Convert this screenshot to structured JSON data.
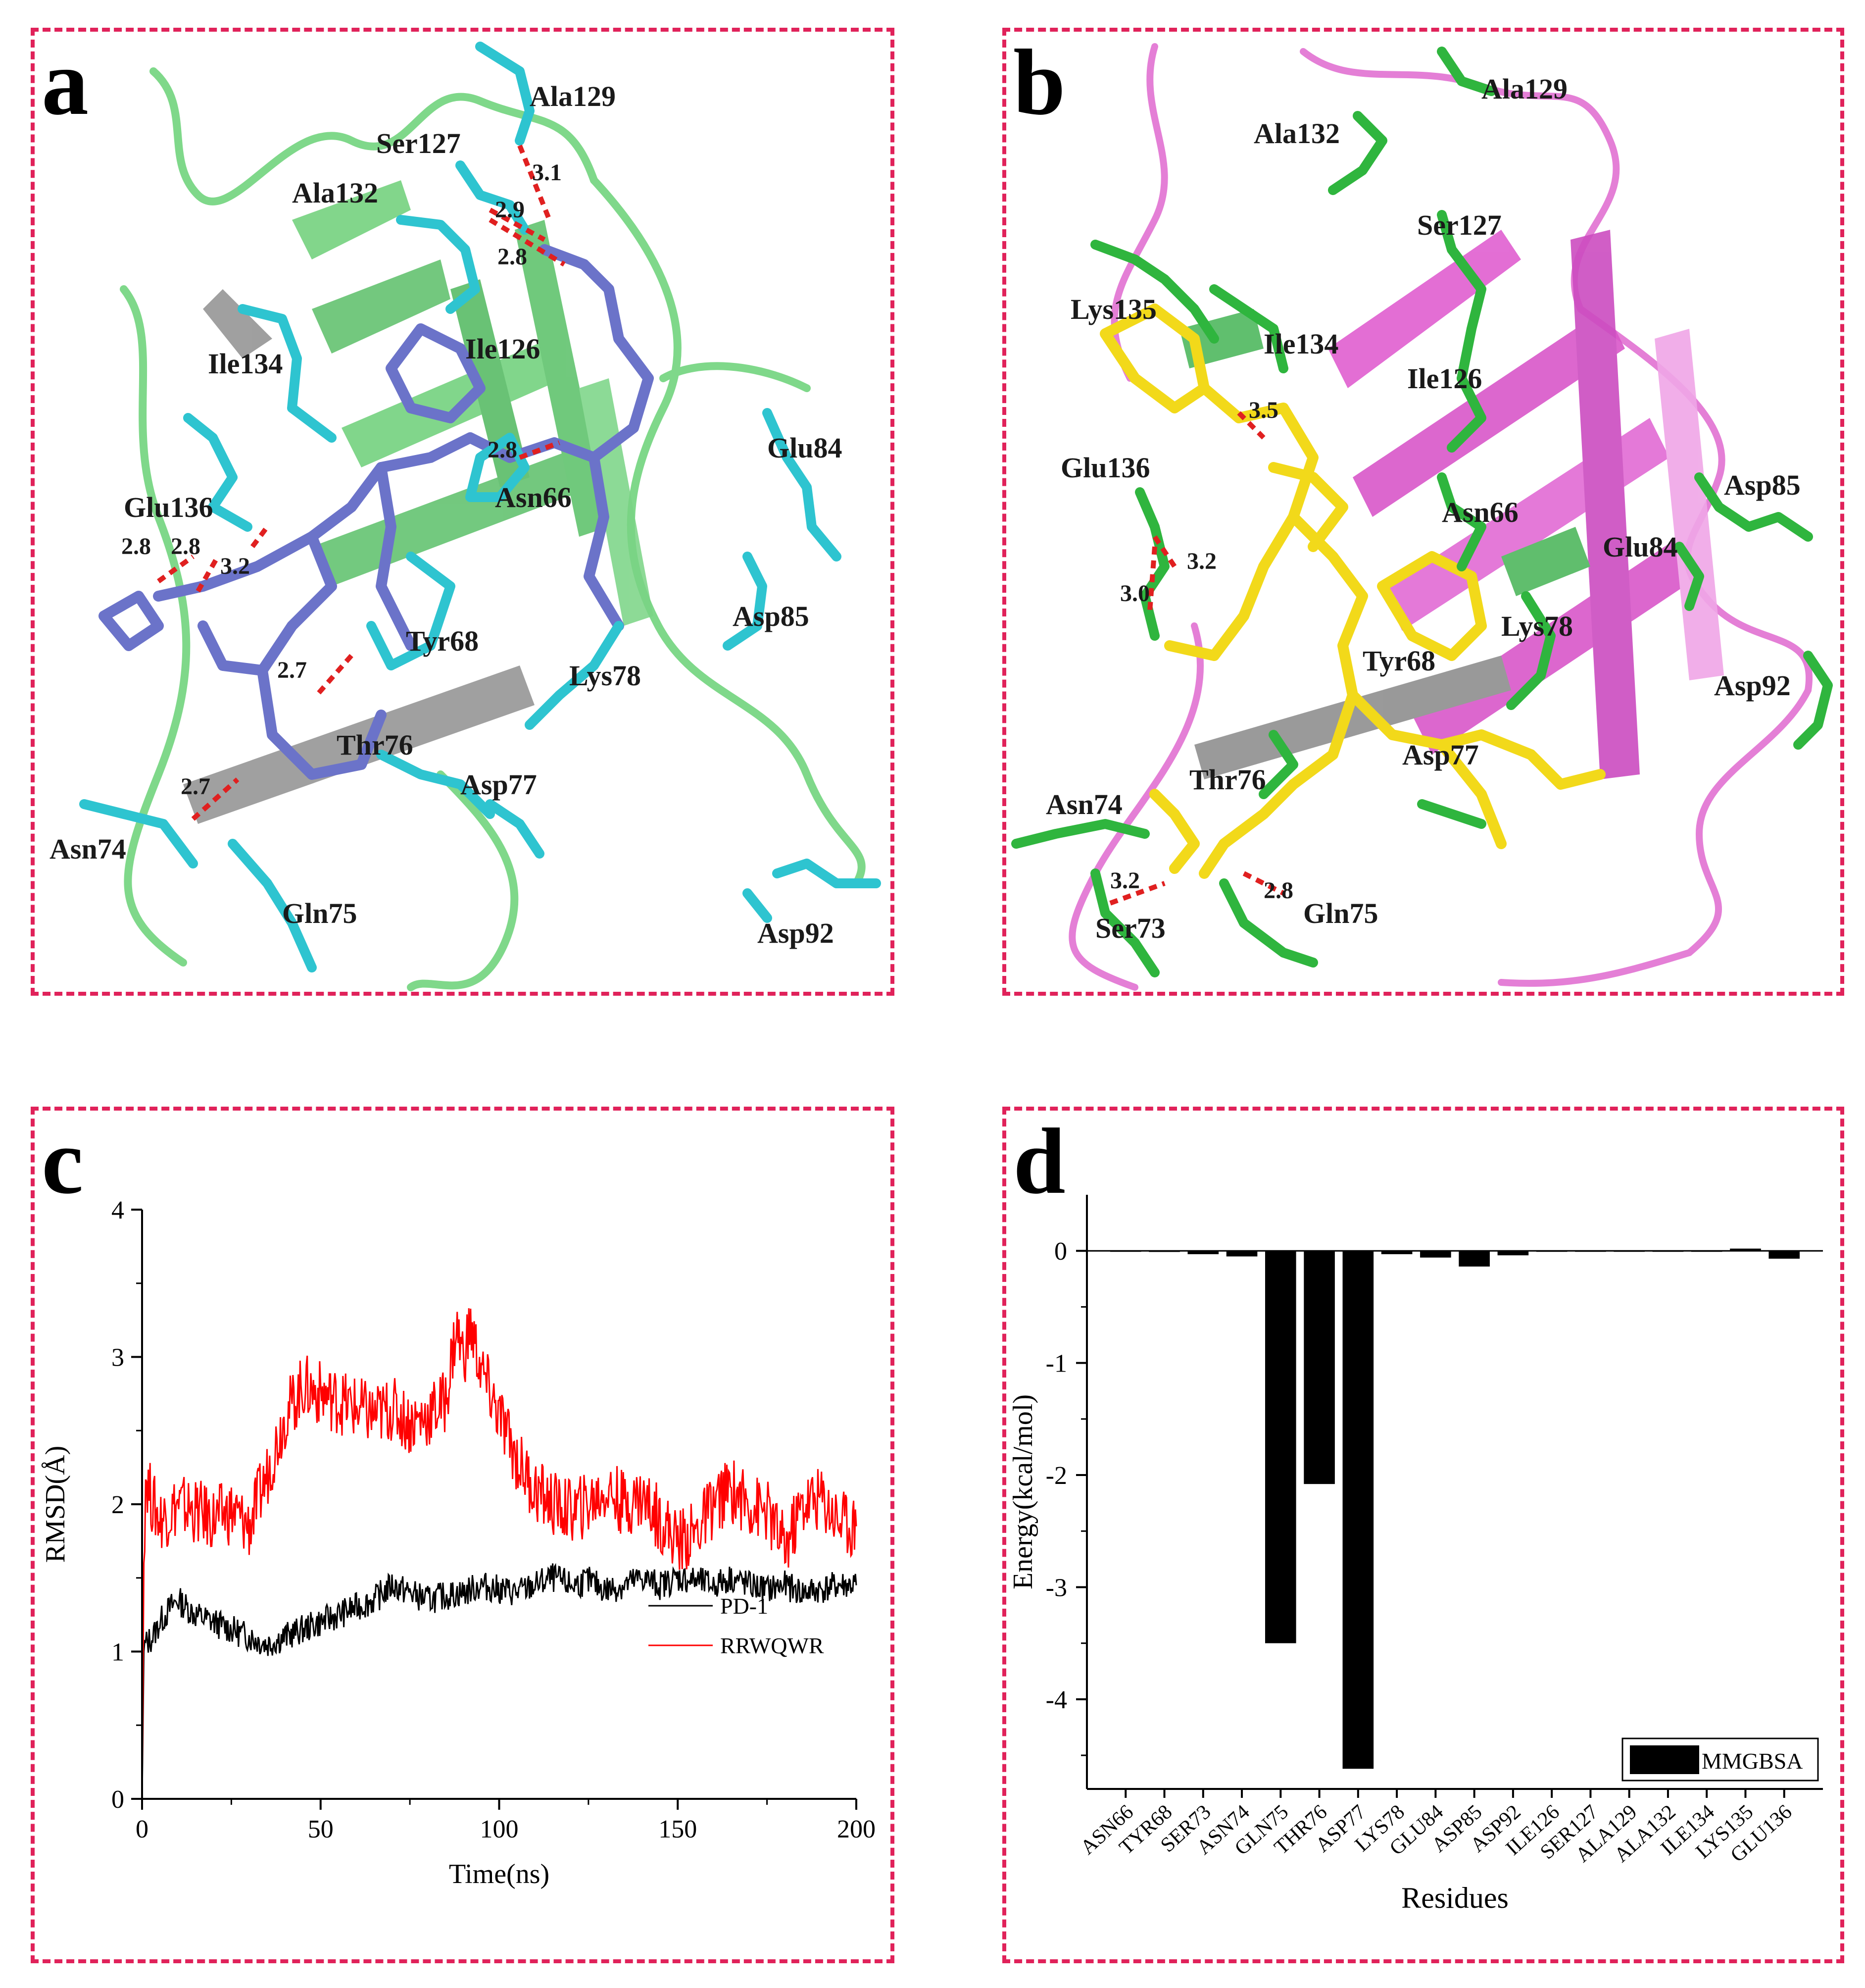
{
  "panels": {
    "a": {
      "letter": "a",
      "residues": [
        "Ala129",
        "Ser127",
        "Ala132",
        "Ile134",
        "Ile126",
        "Glu84",
        "Glu136",
        "Asn66",
        "Tyr68",
        "Lys78",
        "Asp85",
        "Thr76",
        "Asp77",
        "Asn74",
        "Gln75",
        "Asp92"
      ],
      "distances": [
        "3.1",
        "2.9",
        "2.8",
        "2.8",
        "2.8",
        "2.8",
        "3.2",
        "2.7",
        "2.7"
      ]
    },
    "b": {
      "letter": "b",
      "residues": [
        "Ala129",
        "Ala132",
        "Ser127",
        "Lys135",
        "Ile134",
        "Ile126",
        "Glu136",
        "Asn66",
        "Asp85",
        "Glu84",
        "Lys78",
        "Tyr68",
        "Asp92",
        "Thr76",
        "Asp77",
        "Asn74",
        "Gln75",
        "Ser73"
      ],
      "distances": [
        "3.5",
        "3.2",
        "3.0",
        "3.2",
        "2.8"
      ]
    },
    "c": {
      "letter": "c"
    },
    "d": {
      "letter": "d"
    }
  },
  "chart_data": [
    {
      "type": "line",
      "panel": "c",
      "xlabel": "Time(ns)",
      "ylabel": "RMSD(Å)",
      "xlim": [
        0,
        200
      ],
      "ylim": [
        0,
        4
      ],
      "xticks": [
        0,
        50,
        100,
        150,
        200
      ],
      "yticks": [
        0,
        1,
        2,
        3,
        4
      ],
      "legend_position": "bottom-right",
      "series": [
        {
          "name": "PD-1",
          "color": "#000000",
          "x": [
            0,
            0.5,
            1,
            3,
            5,
            8,
            10,
            15,
            20,
            25,
            30,
            35,
            40,
            45,
            50,
            55,
            60,
            65,
            70,
            75,
            80,
            85,
            90,
            95,
            100,
            105,
            110,
            115,
            120,
            125,
            130,
            135,
            140,
            145,
            150,
            155,
            160,
            165,
            170,
            175,
            180,
            185,
            190,
            195,
            200
          ],
          "y": [
            0,
            1.0,
            1.05,
            1.1,
            1.2,
            1.3,
            1.35,
            1.25,
            1.2,
            1.15,
            1.1,
            1.05,
            1.1,
            1.15,
            1.2,
            1.25,
            1.3,
            1.35,
            1.45,
            1.4,
            1.35,
            1.38,
            1.4,
            1.45,
            1.42,
            1.4,
            1.45,
            1.5,
            1.45,
            1.48,
            1.42,
            1.45,
            1.5,
            1.45,
            1.5,
            1.48,
            1.45,
            1.5,
            1.45,
            1.42,
            1.45,
            1.4,
            1.42,
            1.45,
            1.45
          ]
        },
        {
          "name": "RRWQWR",
          "color": "#ff0000",
          "x": [
            0,
            0.5,
            1,
            3,
            5,
            8,
            10,
            15,
            20,
            25,
            30,
            35,
            40,
            45,
            50,
            55,
            60,
            65,
            70,
            75,
            80,
            85,
            88,
            90,
            92,
            95,
            100,
            105,
            110,
            115,
            120,
            125,
            130,
            135,
            140,
            145,
            150,
            155,
            160,
            165,
            170,
            175,
            180,
            185,
            190,
            195,
            200
          ],
          "y": [
            0,
            1.6,
            2.2,
            2.0,
            1.9,
            1.95,
            2.0,
            1.95,
            1.9,
            1.95,
            1.85,
            2.2,
            2.6,
            2.8,
            2.75,
            2.7,
            2.65,
            2.6,
            2.65,
            2.55,
            2.6,
            2.7,
            3.2,
            3.0,
            3.2,
            2.9,
            2.6,
            2.3,
            2.1,
            2.0,
            1.95,
            2.0,
            2.1,
            2.0,
            2.05,
            1.9,
            1.75,
            1.8,
            2.0,
            2.1,
            2.0,
            1.95,
            1.7,
            2.0,
            2.05,
            1.9,
            1.85
          ]
        }
      ]
    },
    {
      "type": "bar",
      "panel": "d",
      "xlabel": "Residues",
      "ylabel": "Energy(kcal/mol)",
      "ylim": [
        -4.8,
        0.5
      ],
      "yticks": [
        0,
        -1,
        -2,
        -3,
        -4
      ],
      "legend_position": "bottom-right",
      "categories": [
        "ASN66",
        "TYR68",
        "SER73",
        "ASN74",
        "GLN75",
        "THR76",
        "ASP77",
        "LYS78",
        "GLU84",
        "ASP85",
        "ASP92",
        "ILE126",
        "SER127",
        "ALA129",
        "ALA132",
        "ILE134",
        "LYS135",
        "GLU136"
      ],
      "series": [
        {
          "name": "MMGBSA",
          "color": "#000000",
          "values": [
            0,
            -0.01,
            -0.03,
            -0.05,
            -3.5,
            -2.08,
            -4.62,
            -0.03,
            -0.06,
            -0.14,
            -0.04,
            0,
            0,
            0,
            0,
            0,
            0.02,
            -0.07
          ]
        }
      ]
    }
  ]
}
